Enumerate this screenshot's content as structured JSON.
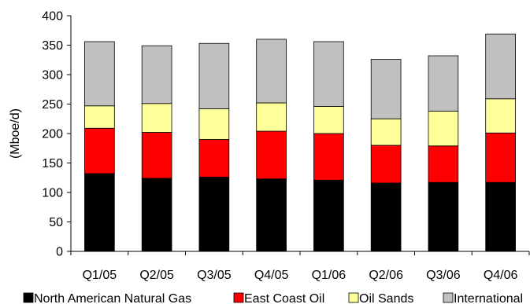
{
  "chart_data": {
    "type": "bar",
    "stacked": true,
    "ylabel": "(Mboe/d)",
    "ylim": [
      0,
      400
    ],
    "ytick_step": 50,
    "yticks": [
      "0",
      "50",
      "100",
      "150",
      "200",
      "250",
      "300",
      "350",
      "400"
    ],
    "categories": [
      "Q1/05",
      "Q2/05",
      "Q3/05",
      "Q4/05",
      "Q1/06",
      "Q2/06",
      "Q3/06",
      "Q4/06"
    ],
    "series": [
      {
        "name": "North American Natural Gas",
        "color": "#000000",
        "values": [
          132,
          124,
          126,
          123,
          121,
          116,
          117,
          117
        ]
      },
      {
        "name": "East Coast Oil",
        "color": "#ff0000",
        "values": [
          77,
          78,
          64,
          81,
          79,
          64,
          62,
          84
        ]
      },
      {
        "name": "Oil Sands",
        "color": "#ffff99",
        "values": [
          38,
          49,
          52,
          48,
          46,
          45,
          59,
          58
        ]
      },
      {
        "name": "International",
        "color": "#c0c0c0",
        "values": [
          109,
          98,
          111,
          108,
          110,
          101,
          94,
          110
        ]
      }
    ],
    "legend_position": "bottom",
    "grid": false
  }
}
